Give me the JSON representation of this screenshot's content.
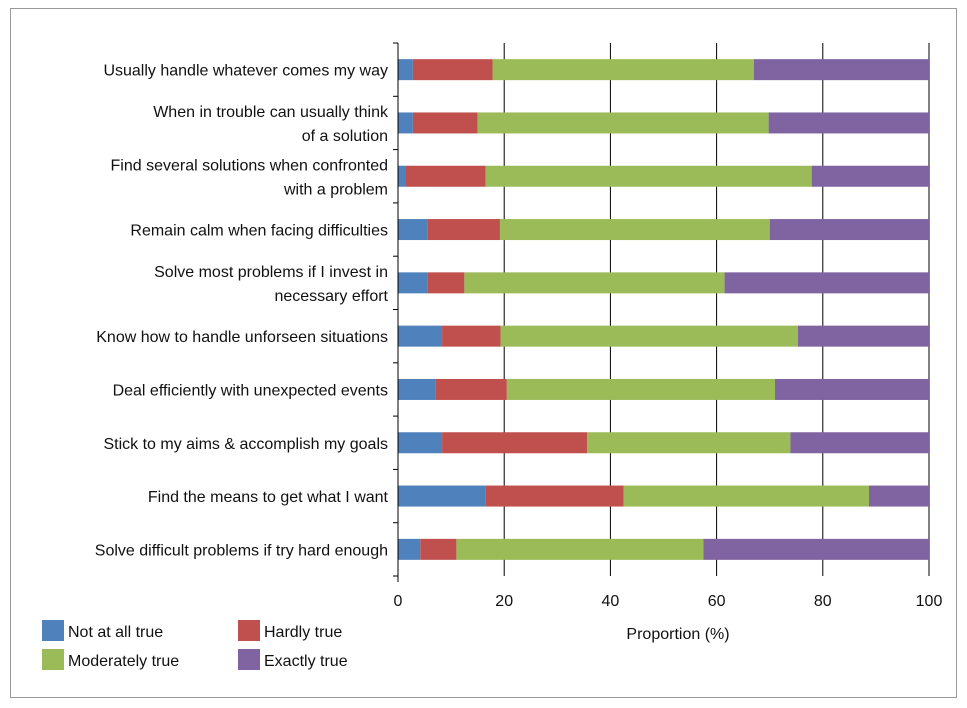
{
  "chart_data": {
    "type": "bar",
    "orientation": "horizontal",
    "stacked": true,
    "categories": [
      [
        "Usually handle whatever comes my way"
      ],
      [
        "When in trouble can usually think",
        "of a solution"
      ],
      [
        "Find several solutions when confronted",
        "with a problem"
      ],
      [
        "Remain calm when facing difficulties"
      ],
      [
        "Solve most problems if I invest in",
        "necessary effort"
      ],
      [
        "Know how to handle unforseen situations"
      ],
      [
        "Deal efficiently with unexpected events"
      ],
      [
        "Stick to my aims & accomplish my goals"
      ],
      [
        "Find the means to get what I want"
      ],
      [
        "Solve difficult problems if try hard enough"
      ]
    ],
    "series": [
      {
        "name": "Not at all true",
        "color": "#4f81bd",
        "values": [
          2.8,
          2.8,
          1.5,
          5.5,
          5.5,
          8.3,
          7.0,
          8.3,
          16.5,
          4.2
        ]
      },
      {
        "name": "Hardly true",
        "color": "#c0504d",
        "values": [
          15.0,
          12.2,
          15.0,
          13.7,
          7.0,
          11.0,
          13.5,
          27.3,
          26.0,
          6.8
        ]
      },
      {
        "name": "Moderately true",
        "color": "#9bbb59",
        "values": [
          49.2,
          54.8,
          61.4,
          50.8,
          49.0,
          56.0,
          50.5,
          38.3,
          46.2,
          46.5
        ]
      },
      {
        "name": "Exactly true",
        "color": "#8064a2",
        "values": [
          33.0,
          30.2,
          22.1,
          30.0,
          38.5,
          24.7,
          29.0,
          26.1,
          11.3,
          42.5
        ]
      }
    ],
    "xlabel": "Proportion (%)",
    "ylabel": "",
    "xlim": [
      0,
      100
    ],
    "xticks": [
      0,
      20,
      40,
      60,
      80,
      100
    ],
    "grid": "vertical",
    "legend": "bottom-left"
  }
}
